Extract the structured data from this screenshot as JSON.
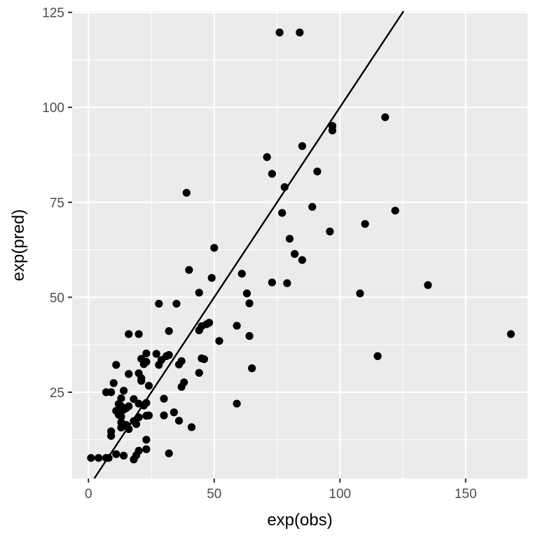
{
  "chart_data": {
    "type": "scatter",
    "title": "",
    "xlabel": "exp(obs)",
    "ylabel": "exp(pred)",
    "xlim": [
      -6.5,
      174.6
    ],
    "ylim": [
      2.3,
      125.3
    ],
    "x_ticks": [
      0,
      50,
      100,
      150
    ],
    "y_ticks": [
      25,
      50,
      75,
      100,
      125
    ],
    "grid": true,
    "colors": {
      "panel": "#ebebeb",
      "grid": "#ffffff",
      "point": "#000000",
      "line": "#000000",
      "tick_text": "#4d4d4d"
    },
    "reference_line": {
      "slope": 1,
      "intercept": 0
    },
    "points": [
      [
        1,
        7.7
      ],
      [
        4,
        7.7
      ],
      [
        7,
        7.7
      ],
      [
        7,
        25
      ],
      [
        8,
        7.7
      ],
      [
        9,
        25
      ],
      [
        9,
        13.5
      ],
      [
        9,
        14.7
      ],
      [
        10,
        27.4
      ],
      [
        11,
        8.7
      ],
      [
        11,
        32.2
      ],
      [
        11,
        20.1
      ],
      [
        12,
        21.9
      ],
      [
        12,
        19.1
      ],
      [
        13,
        17.1
      ],
      [
        13,
        18.6
      ],
      [
        13,
        21.3
      ],
      [
        13,
        23.4
      ],
      [
        13,
        15.7
      ],
      [
        14,
        8.3
      ],
      [
        14,
        25.4
      ],
      [
        14,
        20.4
      ],
      [
        15,
        20.8
      ],
      [
        15,
        16.4
      ],
      [
        16,
        15.3
      ],
      [
        16,
        29.8
      ],
      [
        16,
        21.3
      ],
      [
        16,
        40.3
      ],
      [
        18,
        7.3
      ],
      [
        18,
        17.4
      ],
      [
        18,
        23.2
      ],
      [
        19,
        8.4
      ],
      [
        19,
        16.6
      ],
      [
        20,
        9.6
      ],
      [
        20,
        40.3
      ],
      [
        20,
        30
      ],
      [
        20,
        22
      ],
      [
        20,
        18.4
      ],
      [
        21,
        28
      ],
      [
        21,
        28.7
      ],
      [
        21,
        33.8
      ],
      [
        22,
        21.5
      ],
      [
        22,
        32.4
      ],
      [
        23,
        35.2
      ],
      [
        23,
        33
      ],
      [
        23,
        22.2
      ],
      [
        23,
        18.8
      ],
      [
        23,
        12.5
      ],
      [
        23,
        10
      ],
      [
        24,
        18.9
      ],
      [
        24,
        26.7
      ],
      [
        27,
        35.1
      ],
      [
        28,
        48.3
      ],
      [
        28,
        32.2
      ],
      [
        29,
        33.5
      ],
      [
        30,
        23.3
      ],
      [
        30,
        18.9
      ],
      [
        31,
        34.5
      ],
      [
        32,
        41.1
      ],
      [
        32,
        34.8
      ],
      [
        32,
        8.9
      ],
      [
        34,
        19.7
      ],
      [
        35,
        48.3
      ],
      [
        36,
        32.3
      ],
      [
        36,
        17.5
      ],
      [
        37,
        26.4
      ],
      [
        37,
        33.2
      ],
      [
        38,
        27.6
      ],
      [
        39,
        77.5
      ],
      [
        40,
        57.2
      ],
      [
        41,
        15.8
      ],
      [
        44,
        51.2
      ],
      [
        44,
        30.1
      ],
      [
        44,
        41.3
      ],
      [
        45,
        33.9
      ],
      [
        45,
        42.4
      ],
      [
        46,
        33.7
      ],
      [
        47,
        42.9
      ],
      [
        48,
        43.3
      ],
      [
        49,
        55.1
      ],
      [
        50,
        63
      ],
      [
        52,
        38.5
      ],
      [
        59,
        42.5
      ],
      [
        59,
        22
      ],
      [
        61,
        56.2
      ],
      [
        63,
        51
      ],
      [
        64,
        48.4
      ],
      [
        64,
        39.8
      ],
      [
        65,
        31.3
      ],
      [
        71,
        86.9
      ],
      [
        73,
        82.5
      ],
      [
        73,
        53.9
      ],
      [
        76,
        119.7
      ],
      [
        77,
        72.2
      ],
      [
        78,
        79
      ],
      [
        79,
        53.7
      ],
      [
        80,
        65.4
      ],
      [
        82,
        61.4
      ],
      [
        84,
        119.7
      ],
      [
        85,
        89.8
      ],
      [
        85,
        59.8
      ],
      [
        89,
        73.8
      ],
      [
        91,
        83.1
      ],
      [
        96,
        67.3
      ],
      [
        97,
        95.1
      ],
      [
        97,
        93.9
      ],
      [
        108,
        51
      ],
      [
        110,
        69.3
      ],
      [
        115,
        34.5
      ],
      [
        118,
        97.4
      ],
      [
        122,
        72.8
      ],
      [
        135,
        53.2
      ],
      [
        168,
        40.3
      ]
    ]
  }
}
